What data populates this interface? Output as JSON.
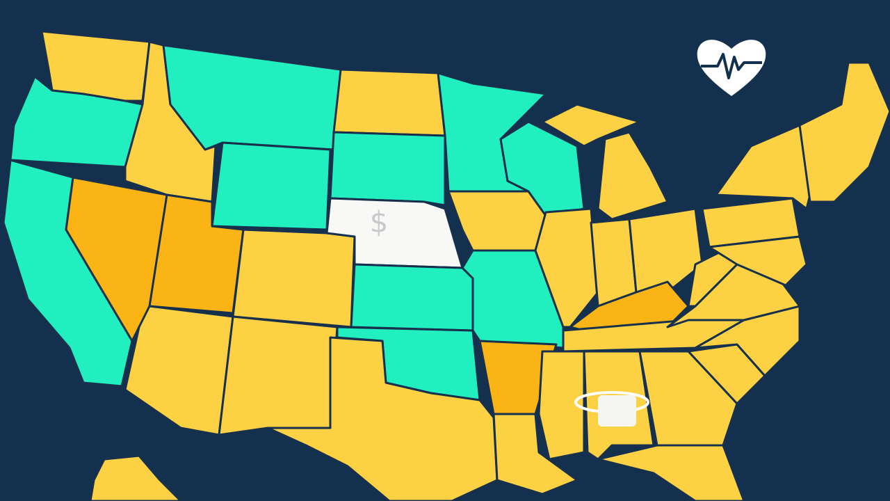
{
  "map": {
    "nebraska_symbol": "$"
  }
}
